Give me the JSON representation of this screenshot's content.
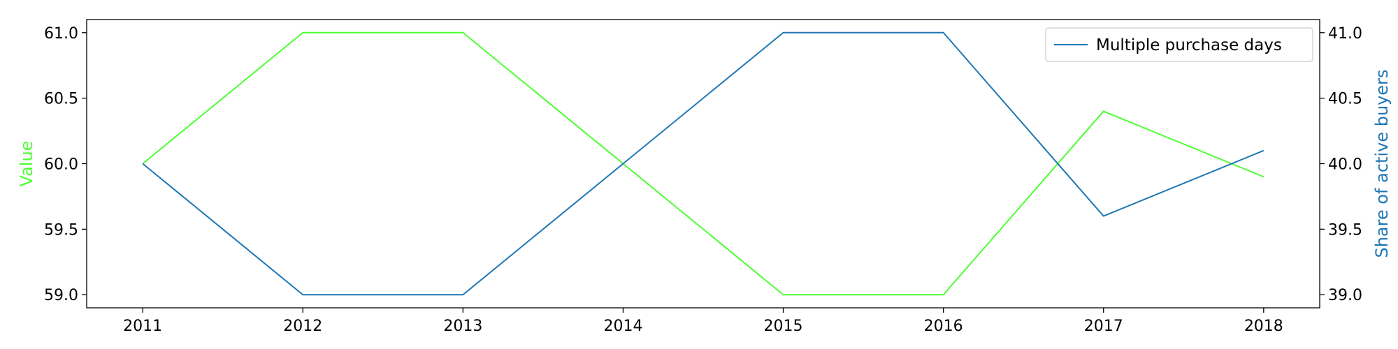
{
  "chart_data": {
    "type": "line",
    "x": [
      2011,
      2012,
      2013,
      2014,
      2015,
      2016,
      2017,
      2018
    ],
    "x_tick_labels": [
      "2011",
      "2012",
      "2013",
      "2014",
      "2015",
      "2016",
      "2017",
      "2018"
    ],
    "xlim": [
      2010.65,
      2018.35
    ],
    "series": [
      {
        "name": "Value",
        "axis": "left",
        "color": "#4dff33",
        "in_legend": false,
        "values": [
          60.0,
          61.0,
          61.0,
          60.0,
          59.0,
          59.0,
          60.4,
          59.9
        ]
      },
      {
        "name": "Multiple purchase days",
        "axis": "right",
        "color": "#1f77b4",
        "in_legend": true,
        "values": [
          40.0,
          39.0,
          39.0,
          40.0,
          41.0,
          41.0,
          39.6,
          40.1
        ]
      }
    ],
    "left_axis": {
      "label": "Value",
      "color": "#4dff33",
      "ylim": [
        58.9,
        61.1
      ],
      "ticks": [
        59.0,
        59.5,
        60.0,
        60.5,
        61.0
      ],
      "tick_labels": [
        "59.0",
        "59.5",
        "60.0",
        "60.5",
        "61.0"
      ]
    },
    "right_axis": {
      "label": "Share of active buyers",
      "color": "#1f77b4",
      "ylim": [
        38.9,
        41.1
      ],
      "ticks": [
        39.0,
        39.5,
        40.0,
        40.5,
        41.0
      ],
      "tick_labels": [
        "39.0",
        "39.5",
        "40.0",
        "40.5",
        "41.0"
      ]
    },
    "legend": {
      "position": "top-right",
      "entries": [
        "Multiple purchase days"
      ]
    },
    "grid": false
  }
}
